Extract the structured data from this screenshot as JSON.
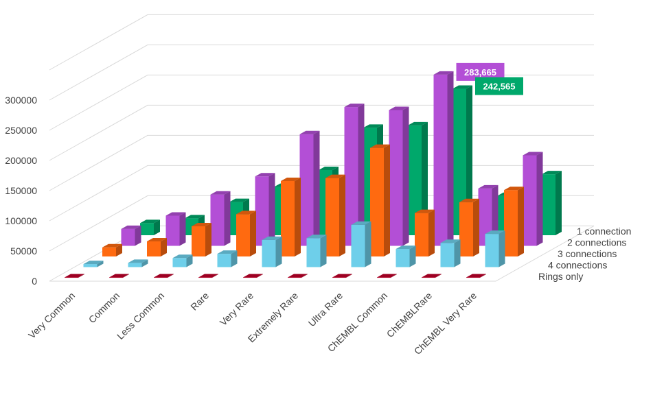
{
  "chart_data": {
    "type": "bar",
    "subtype": "3d-clustered-column",
    "title": "",
    "xlabel": "",
    "ylabel": "",
    "ylim": [
      0,
      300000
    ],
    "yticks": [
      0,
      50000,
      100000,
      150000,
      200000,
      250000,
      300000
    ],
    "grid": true,
    "categories": [
      "Very Common",
      "Common",
      "Less Common",
      "Rare",
      "Very Rare",
      "Extremely Rare",
      "Ultra Rare",
      "ChEMBL Common",
      "ChEMBLRare",
      "ChEMBL Very Rare"
    ],
    "series": [
      {
        "name": "1 connection",
        "color": "#00A86B",
        "values": [
          20000,
          28000,
          55000,
          80000,
          108000,
          178000,
          182000,
          242565,
          65000,
          101000
        ]
      },
      {
        "name": "2 connections",
        "color": "#B34FD6",
        "values": [
          28000,
          50000,
          85000,
          115000,
          185000,
          230000,
          225000,
          283665,
          95000,
          150000
        ]
      },
      {
        "name": "3 connections",
        "color": "#FF6A10",
        "values": [
          15000,
          25000,
          50000,
          70000,
          125000,
          130000,
          180000,
          72000,
          90000,
          110000
        ]
      },
      {
        "name": "4 connections",
        "color": "#6ECFEA",
        "values": [
          5000,
          7000,
          15000,
          22000,
          45000,
          48000,
          70000,
          30000,
          40000,
          55000
        ]
      },
      {
        "name": "Rings only",
        "color": "#C0002A",
        "values": [
          500,
          500,
          500,
          500,
          500,
          500,
          500,
          500,
          500,
          500
        ]
      }
    ],
    "annotations": [
      {
        "series": "2 connections",
        "category": "ChEMBL Common",
        "label": "283,665",
        "color": "#B34FD6"
      },
      {
        "series": "1 connection",
        "category": "ChEMBL Common",
        "label": "242,565",
        "color": "#00A86B"
      }
    ]
  }
}
